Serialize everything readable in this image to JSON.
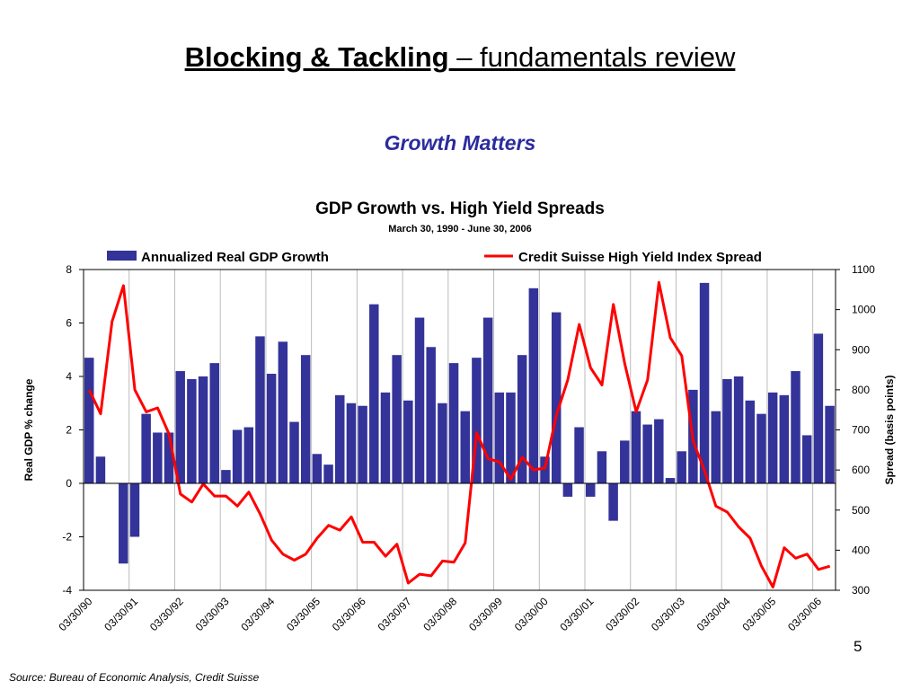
{
  "slide": {
    "title_bold": "Blocking & Tackling",
    "title_rest": " – fundamentals review",
    "subtitle": "Growth Matters",
    "page_number": "5",
    "source": "Source:  Bureau of Economic Analysis, Credit Suisse"
  },
  "chart_data": {
    "type": "bar+line",
    "title": "GDP Growth vs. High Yield Spreads",
    "subtitle": "March 30, 1990 - June 30, 2006",
    "x_tick_labels": [
      "03/30/90",
      "03/30/91",
      "03/30/92",
      "03/30/93",
      "03/30/94",
      "03/30/95",
      "03/30/96",
      "03/30/97",
      "03/30/98",
      "03/30/99",
      "03/30/00",
      "03/30/01",
      "03/30/02",
      "03/30/03",
      "03/30/04",
      "03/30/05",
      "03/30/06"
    ],
    "bars": {
      "name": "Annualized Real GDP Growth",
      "axis": "left",
      "color": "#333399",
      "values": [
        4.7,
        1.0,
        0.0,
        -3.0,
        -2.0,
        2.6,
        1.9,
        1.9,
        4.2,
        3.9,
        4.0,
        4.5,
        0.5,
        2.0,
        2.1,
        5.5,
        4.1,
        5.3,
        2.3,
        4.8,
        1.1,
        0.7,
        3.3,
        3.0,
        2.9,
        6.7,
        3.4,
        4.8,
        3.1,
        6.2,
        5.1,
        3.0,
        4.5,
        2.7,
        4.7,
        6.2,
        3.4,
        3.4,
        4.8,
        7.3,
        1.0,
        6.4,
        -0.5,
        2.1,
        -0.5,
        1.2,
        -1.4,
        1.6,
        2.7,
        2.2,
        2.4,
        0.2,
        1.2,
        3.5,
        7.5,
        2.7,
        3.9,
        4.0,
        3.1,
        2.6,
        3.4,
        3.3,
        4.2,
        1.8,
        5.6,
        2.9
      ]
    },
    "line": {
      "name": "Credit Suisse High Yield Index Spread",
      "axis": "right",
      "color": "#ff0000",
      "values": [
        800,
        740,
        970,
        1060,
        800,
        745,
        755,
        690,
        540,
        520,
        565,
        535,
        535,
        510,
        545,
        490,
        425,
        390,
        375,
        390,
        430,
        462,
        450,
        483,
        420,
        420,
        385,
        415,
        318,
        340,
        336,
        373,
        370,
        418,
        693,
        628,
        620,
        577,
        632,
        600,
        605,
        737,
        825,
        963,
        855,
        812,
        1013,
        865,
        745,
        825,
        1068,
        930,
        885,
        672,
        598,
        510,
        495,
        458,
        430,
        360,
        308,
        406,
        380,
        390,
        352,
        360
      ]
    },
    "left_axis": {
      "label": "Real GDP % change",
      "ylim": [
        -4,
        8
      ],
      "ticks": [
        -4,
        -2,
        0,
        2,
        4,
        6,
        8
      ]
    },
    "right_axis": {
      "label": "Spread (basis points)",
      "ylim": [
        300,
        1100
      ],
      "ticks": [
        300,
        400,
        500,
        600,
        700,
        800,
        900,
        1000,
        1100
      ]
    },
    "grid": "vertical",
    "legend_position": "top"
  }
}
